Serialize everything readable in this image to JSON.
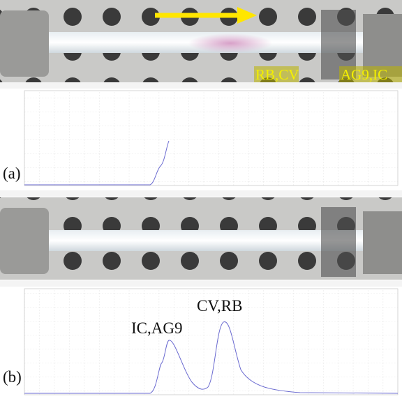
{
  "panel_a": {
    "tags": [
      "RB,CV",
      "AG9,IC"
    ],
    "label": "(a)"
  },
  "panel_b": {
    "label": "(b)",
    "peaks": [
      "IC,AG9",
      "CV,RB"
    ]
  }
}
